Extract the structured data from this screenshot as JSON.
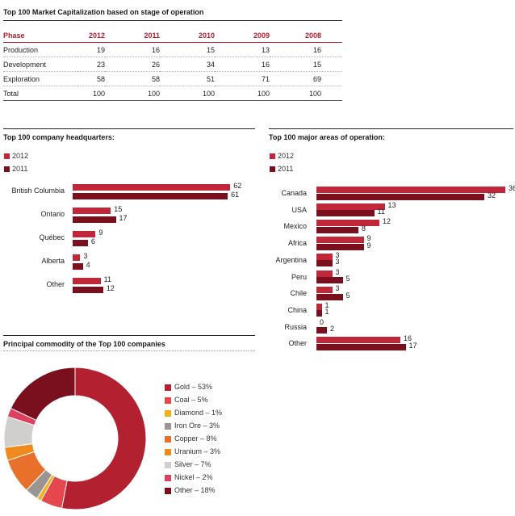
{
  "market_cap": {
    "title": "Top 100 Market Capitalization based on stage of operation",
    "header": [
      "Phase",
      "2012",
      "2011",
      "2010",
      "2009",
      "2008"
    ],
    "rows": [
      [
        "Production",
        "19",
        "16",
        "15",
        "13",
        "16"
      ],
      [
        "Development",
        "23",
        "26",
        "34",
        "16",
        "15"
      ],
      [
        "Exploration",
        "58",
        "58",
        "51",
        "71",
        "69"
      ],
      [
        "Total",
        "100",
        "100",
        "100",
        "100",
        "100"
      ]
    ]
  },
  "chart_data": [
    {
      "type": "bar",
      "orientation": "horizontal",
      "title": "Top 100 company headquarters:",
      "categories": [
        "British Columbia",
        "Ontario",
        "Québec",
        "Alberta",
        "Other"
      ],
      "series": [
        {
          "name": "2012",
          "values": [
            62,
            15,
            9,
            3,
            11
          ]
        },
        {
          "name": "2011",
          "values": [
            61,
            17,
            6,
            4,
            12
          ]
        }
      ],
      "legend_position": "top-left",
      "grid": false
    },
    {
      "type": "bar",
      "orientation": "horizontal",
      "title": "Top 100 major areas of operation:",
      "categories": [
        "Canada",
        "USA",
        "Mexico",
        "Africa",
        "Argentina",
        "Peru",
        "Chile",
        "China",
        "Russia",
        "Other"
      ],
      "series": [
        {
          "name": "2012",
          "values": [
            36,
            13,
            12,
            9,
            3,
            3,
            3,
            1,
            0,
            16
          ]
        },
        {
          "name": "2011",
          "values": [
            32,
            11,
            8,
            9,
            3,
            5,
            5,
            1,
            2,
            17
          ]
        }
      ],
      "legend_position": "top-left",
      "grid": false
    },
    {
      "type": "pie",
      "donut": true,
      "title": "Principal commodity of the Top 100 companies",
      "slices": [
        {
          "label": "Gold – 53%",
          "value": 53,
          "color": "#b3202f"
        },
        {
          "label": "Coal – 5%",
          "value": 5,
          "color": "#e5474f"
        },
        {
          "label": "Diamond – 1%",
          "value": 1,
          "color": "#f2b117"
        },
        {
          "label": "Iron Ore – 3%",
          "value": 3,
          "color": "#9a9492"
        },
        {
          "label": "Copper – 8%",
          "value": 8,
          "color": "#e8702a"
        },
        {
          "label": "Uranium – 3%",
          "value": 3,
          "color": "#f08a1c"
        },
        {
          "label": "Silver – 7%",
          "value": 7,
          "color": "#d1cfcd"
        },
        {
          "label": "Nickel – 2%",
          "value": 2,
          "color": "#e0405f"
        },
        {
          "label": "Other – 18%",
          "value": 18,
          "color": "#7a0f1e"
        }
      ],
      "legend_position": "right"
    }
  ],
  "colors": {
    "series_2012": "#c0283a",
    "series_2011": "#7a0f1e",
    "accent": "#b3202f"
  }
}
